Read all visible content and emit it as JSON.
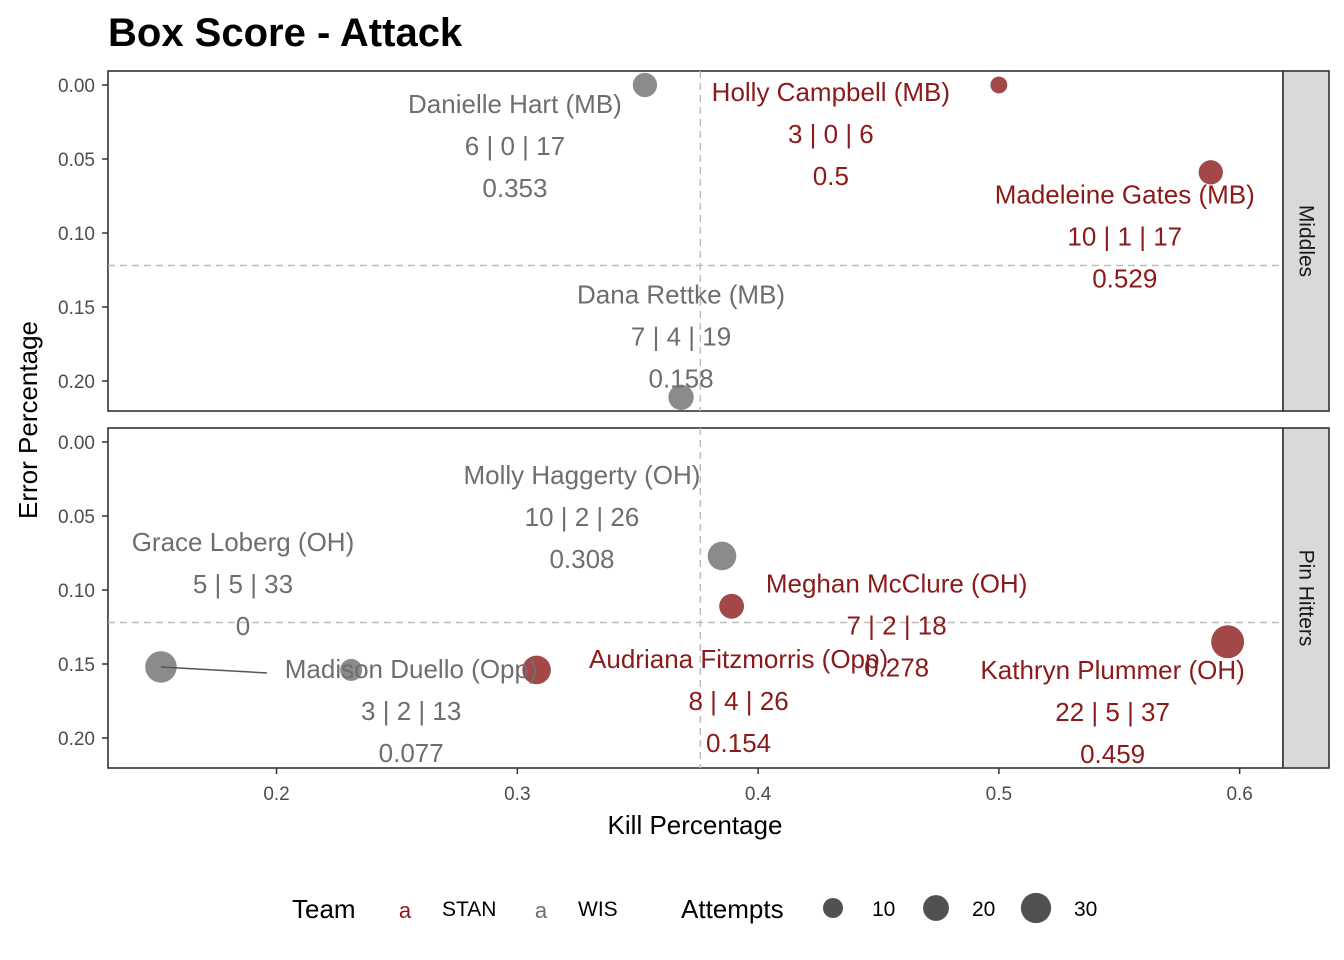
{
  "chart_data": {
    "type": "scatter",
    "title": "Box Score - Attack",
    "xlabel": "Kill Percentage",
    "ylabel": "Error Percentage",
    "xlim": [
      0.13,
      0.618
    ],
    "ylim": [
      0.0,
      0.22
    ],
    "y_reversed": true,
    "x_ticks": [
      0.2,
      0.3,
      0.4,
      0.5,
      0.6
    ],
    "x_tick_labels": [
      "0.2",
      "0.3",
      "0.4",
      "0.5",
      "0.6"
    ],
    "y_ticks": [
      0.0,
      0.05,
      0.1,
      0.15,
      0.2
    ],
    "y_tick_labels": [
      "0.00",
      "0.05",
      "0.10",
      "0.15",
      "0.20"
    ],
    "reference_lines": {
      "x": 0.376,
      "y": 0.122
    },
    "grid": false,
    "legend_position": "bottom",
    "teams": {
      "title": "Team",
      "items": [
        {
          "key": "STAN",
          "label": "STAN",
          "color": "#8B1A1A"
        },
        {
          "key": "WIS",
          "label": "WIS",
          "color": "#6E6E6E"
        }
      ]
    },
    "size_legend": {
      "title": "Attempts",
      "items": [
        {
          "label": "10",
          "value": 10
        },
        {
          "label": "20",
          "value": 20
        },
        {
          "label": "30",
          "value": 30
        }
      ]
    },
    "panels": [
      {
        "name": "Middles",
        "points": [
          {
            "player": "Danielle Hart (MB)",
            "team": "WIS",
            "kills": 6,
            "errors": 0,
            "attempts": 17,
            "hit_pct": "0.353",
            "x": 0.353,
            "y": 0.0
          },
          {
            "player": "Holly Campbell (MB)",
            "team": "STAN",
            "kills": 3,
            "errors": 0,
            "attempts": 6,
            "hit_pct": "0.5",
            "x": 0.5,
            "y": 0.0
          },
          {
            "player": "Madeleine Gates (MB)",
            "team": "STAN",
            "kills": 10,
            "errors": 1,
            "attempts": 17,
            "hit_pct": "0.529",
            "x": 0.588,
            "y": 0.059
          },
          {
            "player": "Dana Rettke (MB)",
            "team": "WIS",
            "kills": 7,
            "errors": 4,
            "attempts": 19,
            "hit_pct": "0.158",
            "x": 0.368,
            "y": 0.211
          }
        ]
      },
      {
        "name": "Pin Hitters",
        "points": [
          {
            "player": "Molly Haggerty (OH)",
            "team": "WIS",
            "kills": 10,
            "errors": 2,
            "attempts": 26,
            "hit_pct": "0.308",
            "x": 0.385,
            "y": 0.077
          },
          {
            "player": "Meghan McClure (OH)",
            "team": "STAN",
            "kills": 7,
            "errors": 2,
            "attempts": 18,
            "hit_pct": "0.278",
            "x": 0.389,
            "y": 0.111
          },
          {
            "player": "Grace Loberg (OH)",
            "team": "WIS",
            "kills": 5,
            "errors": 5,
            "attempts": 33,
            "hit_pct": "0",
            "x": 0.152,
            "y": 0.152
          },
          {
            "player": "Madison Duello (Opp)",
            "team": "WIS",
            "kills": 3,
            "errors": 2,
            "attempts": 13,
            "hit_pct": "0.077",
            "x": 0.231,
            "y": 0.154
          },
          {
            "player": "Audriana Fitzmorris (Opp)",
            "team": "STAN",
            "kills": 8,
            "errors": 4,
            "attempts": 26,
            "hit_pct": "0.154",
            "x": 0.308,
            "y": 0.154
          },
          {
            "player": "Kathryn Plummer (OH)",
            "team": "STAN",
            "kills": 22,
            "errors": 5,
            "attempts": 37,
            "hit_pct": "0.459",
            "x": 0.595,
            "y": 0.135
          }
        ]
      }
    ]
  }
}
